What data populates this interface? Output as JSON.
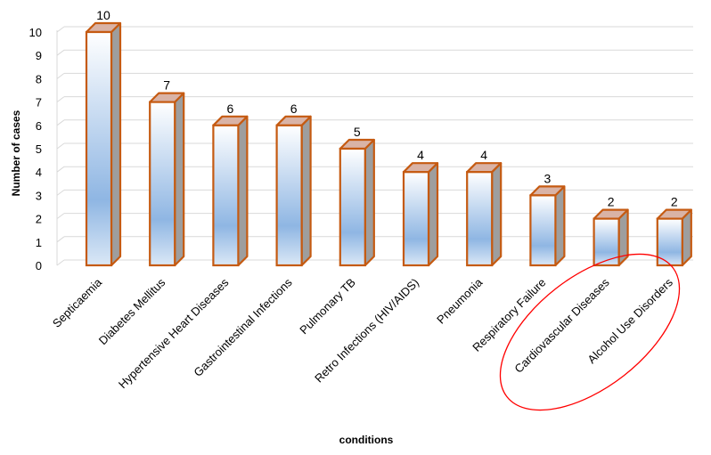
{
  "chart_data": {
    "type": "bar",
    "categories": [
      "Septicaemia",
      "Diabetes Mellitus",
      "Hypertensive Heart Diseases",
      "Gastrointestinal Infections",
      "Pulmonary TB",
      "Retro Infections (HIV/AIDS)",
      "Pneumonia",
      "Respiratory Failure",
      "Cardiovascular Diseases",
      "Alcohol Use Disorders"
    ],
    "values": [
      10,
      7,
      6,
      6,
      5,
      4,
      4,
      3,
      2,
      2
    ],
    "xlabel": "conditions",
    "ylabel": "Number of cases",
    "ylim": [
      0,
      10
    ],
    "yticks": [
      0,
      1,
      2,
      3,
      4,
      5,
      6,
      7,
      8,
      9,
      10
    ],
    "grid": true,
    "data_labels": true,
    "bar_style": "3d-column",
    "colors": {
      "bar_outline": "#c55a11",
      "bar_light": "#ffffff",
      "bar_mid": "#9dc3e6",
      "bar_dark": "#6fa0d8",
      "side_face": "#9e9e9e",
      "top_face": "#d9b3a6",
      "grid": "#d9d9d9",
      "highlight_ellipse": "#ff0000"
    },
    "annotation": "red ellipse highlighting Cardiovascular Diseases and Alcohol Use Disorders"
  }
}
